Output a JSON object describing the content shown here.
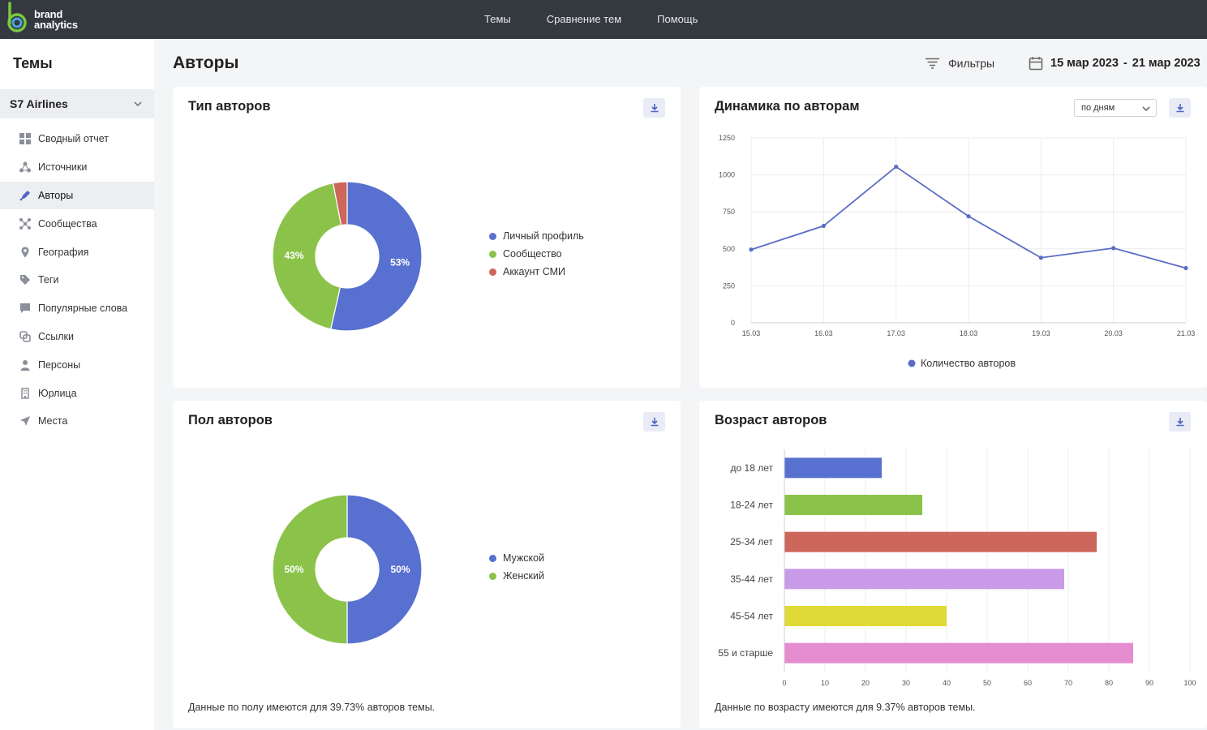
{
  "app": {
    "logo_line1": "brand",
    "logo_line2": "analytics",
    "nav": [
      "Темы",
      "Сравнение тем",
      "Помощь"
    ]
  },
  "sidebar": {
    "title": "Темы",
    "theme": "S7 Airlines",
    "items": [
      {
        "label": "Сводный отчет",
        "icon": "grid-icon",
        "active": false
      },
      {
        "label": "Источники",
        "icon": "sources-icon",
        "active": false
      },
      {
        "label": "Авторы",
        "icon": "pen-icon",
        "active": true
      },
      {
        "label": "Сообщества",
        "icon": "communities-icon",
        "active": false
      },
      {
        "label": "География",
        "icon": "location-pin-icon",
        "active": false
      },
      {
        "label": "Теги",
        "icon": "tag-icon",
        "active": false
      },
      {
        "label": "Популярные слова",
        "icon": "speech-bubble-icon",
        "active": false
      },
      {
        "label": "Ссылки",
        "icon": "link-icon",
        "active": false
      },
      {
        "label": "Персоны",
        "icon": "person-icon",
        "active": false
      },
      {
        "label": "Юрлица",
        "icon": "building-icon",
        "active": false
      },
      {
        "label": "Места",
        "icon": "navigation-arrow-icon",
        "active": false
      }
    ]
  },
  "header": {
    "title": "Авторы",
    "filters_label": "Фильтры",
    "date_from": "15 мар 2023",
    "date_sep": "-",
    "date_to": "21 мар 2023"
  },
  "cards": {
    "author_type": {
      "title": "Тип авторов"
    },
    "dynamics": {
      "title": "Динамика по авторам",
      "period_select": "по дням"
    },
    "gender": {
      "title": "Пол авторов",
      "footer": "Данные по полу имеются для 39.73% авторов темы."
    },
    "age": {
      "title": "Возраст авторов",
      "footer": "Данные по возрасту имеются для 9.37% авторов темы."
    }
  },
  "colors": {
    "blue": "#5870d0",
    "green": "#8bc34a",
    "red": "#cd665b",
    "purple": "#c99ae8",
    "yellow": "#e0da38",
    "pink": "#e68cd0",
    "line": "#5b6cc6"
  },
  "chart_data": [
    {
      "type": "pie",
      "title": "Тип авторов",
      "categories": [
        "Личный профиль",
        "Сообщество",
        "Аккаунт СМИ"
      ],
      "values": [
        53,
        43,
        3
      ],
      "labels": [
        "53%",
        "43%",
        ""
      ],
      "colors": [
        "#5870d0",
        "#8bc34a",
        "#cd665b"
      ],
      "legend": "right"
    },
    {
      "type": "line",
      "title": "Динамика по авторам",
      "x": [
        "15.03",
        "16.03",
        "17.03",
        "18.03",
        "19.03",
        "20.03",
        "21.03"
      ],
      "series": [
        {
          "name": "Количество авторов",
          "values": [
            495,
            655,
            1055,
            720,
            440,
            505,
            370
          ]
        }
      ],
      "ylim": [
        0,
        1250
      ],
      "yticks": [
        0,
        250,
        500,
        750,
        1000,
        1250
      ],
      "grid": true,
      "legend": "bottom"
    },
    {
      "type": "pie",
      "title": "Пол авторов",
      "categories": [
        "Мужской",
        "Женский"
      ],
      "values": [
        50,
        50
      ],
      "labels": [
        "50%",
        "50%"
      ],
      "colors": [
        "#5870d0",
        "#8bc34a"
      ],
      "legend": "right"
    },
    {
      "type": "bar",
      "title": "Возраст авторов",
      "orientation": "horizontal",
      "categories": [
        "до 18 лет",
        "18-24 лет",
        "25-34 лет",
        "35-44 лет",
        "45-54 лет",
        "55 и старше"
      ],
      "values": [
        24,
        34,
        77,
        69,
        40,
        86
      ],
      "colors": [
        "#5870d0",
        "#8bc34a",
        "#cd665b",
        "#c99ae8",
        "#e0da38",
        "#e68cd0"
      ],
      "xlim": [
        0,
        100
      ],
      "xticks": [
        0,
        10,
        20,
        30,
        40,
        50,
        60,
        70,
        80,
        90,
        100
      ],
      "grid": true
    }
  ]
}
